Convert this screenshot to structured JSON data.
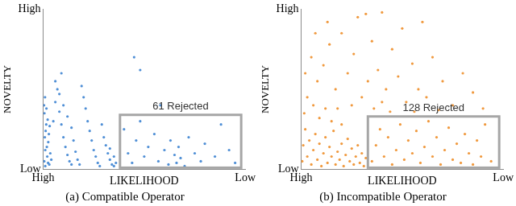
{
  "chart_data": [
    {
      "type": "scatter",
      "title": "(a) Compatible Operator",
      "xlabel": "LIKELIHOOD",
      "ylabel": "NOVELTY",
      "color": "#4f8fd6",
      "grid": false,
      "xlim": [
        0,
        100
      ],
      "xticks": [
        {
          "value": 0,
          "label": "High"
        },
        {
          "value": 100,
          "label": "Low"
        }
      ],
      "ylim": [
        0,
        100
      ],
      "yticks": [
        {
          "value": 0,
          "label": "Low"
        },
        {
          "value": 100,
          "label": "High"
        }
      ],
      "annotations": [
        {
          "text": "61 Rejected",
          "x": [
            38,
            98
          ],
          "y": [
            1,
            34
          ]
        }
      ],
      "x": [
        0.5,
        1,
        0.8,
        1.5,
        0.6,
        2,
        2.5,
        1.2,
        3,
        2.2,
        0.4,
        1.8,
        3.5,
        2.8,
        1,
        4,
        3.2,
        1.6,
        0.9,
        2.4,
        5,
        6,
        7,
        8,
        9,
        10,
        11,
        12,
        13,
        14,
        6,
        8,
        10,
        12,
        14,
        15,
        16,
        17,
        18,
        9,
        20,
        21,
        22,
        23,
        24,
        25,
        26,
        27,
        28,
        19,
        30,
        31,
        32,
        33,
        34,
        35,
        29,
        33,
        35,
        36,
        40,
        42,
        44,
        46,
        48,
        50,
        52,
        55,
        57,
        60,
        62,
        63,
        65,
        66,
        67,
        68,
        70,
        72,
        75,
        78,
        80,
        85,
        88,
        92,
        95,
        45,
        48,
        58
      ],
      "values": [
        5,
        12,
        20,
        28,
        35,
        8,
        17,
        24,
        3,
        31,
        40,
        14,
        10,
        22,
        2,
        6,
        27,
        38,
        45,
        4,
        30,
        42,
        50,
        36,
        28,
        20,
        14,
        9,
        5,
        3,
        55,
        47,
        40,
        33,
        26,
        18,
        11,
        6,
        3,
        60,
        45,
        38,
        30,
        24,
        18,
        12,
        8,
        4,
        2,
        52,
        20,
        15,
        10,
        6,
        3,
        2,
        28,
        13,
        8,
        4,
        25,
        10,
        4,
        18,
        30,
        8,
        14,
        22,
        5,
        12,
        3,
        18,
        9,
        4,
        14,
        7,
        2,
        20,
        10,
        5,
        16,
        8,
        28,
        12,
        4,
        70,
        62,
        40
      ]
    },
    {
      "type": "scatter",
      "title": "(b) Incompatible Operator",
      "xlabel": "LIKELIHOOD",
      "ylabel": "NOVELTY",
      "color": "#f0993e",
      "grid": false,
      "xlim": [
        0,
        100
      ],
      "xticks": [
        {
          "value": 0,
          "label": "High"
        },
        {
          "value": 100,
          "label": "Low"
        }
      ],
      "ylim": [
        0,
        100
      ],
      "yticks": [
        {
          "value": 0,
          "label": "Low"
        },
        {
          "value": 100,
          "label": "High"
        }
      ],
      "annotations": [
        {
          "text": "128 Rejected",
          "x": [
            33,
            98
          ],
          "y": [
            1,
            33
          ]
        }
      ],
      "x": [
        0.5,
        1,
        2,
        1.5,
        3,
        4,
        5,
        6,
        7,
        8,
        9,
        10,
        11,
        12,
        13,
        14,
        15,
        16,
        17,
        18,
        19,
        20,
        21,
        22,
        23,
        24,
        25,
        26,
        27,
        28,
        29,
        30,
        31,
        32,
        3,
        6,
        9,
        12,
        15,
        20,
        2,
        5,
        8,
        11,
        14,
        17,
        20,
        23,
        26,
        28,
        30,
        33,
        35,
        38,
        40,
        42,
        45,
        48,
        50,
        52,
        55,
        58,
        60,
        62,
        65,
        70,
        75,
        80,
        85,
        90,
        25,
        36,
        44,
        56,
        68,
        7,
        13,
        32,
        18,
        40,
        35,
        37,
        39,
        41,
        43,
        45,
        47,
        49,
        51,
        53,
        55,
        57,
        59,
        61,
        63,
        65,
        67,
        69,
        71,
        73,
        75,
        77,
        79,
        81,
        83,
        85,
        87,
        89,
        91,
        94
      ],
      "values": [
        5,
        15,
        25,
        35,
        8,
        18,
        3,
        12,
        22,
        6,
        16,
        2,
        10,
        20,
        4,
        14,
        8,
        24,
        3,
        11,
        6,
        16,
        2,
        9,
        19,
        5,
        13,
        3,
        8,
        15,
        4,
        10,
        2,
        7,
        45,
        40,
        32,
        38,
        30,
        28,
        60,
        70,
        55,
        65,
        78,
        50,
        85,
        60,
        72,
        95,
        45,
        55,
        80,
        62,
        98,
        50,
        75,
        58,
        88,
        42,
        66,
        50,
        92,
        45,
        70,
        55,
        40,
        60,
        48,
        38,
        40,
        38,
        36,
        36,
        37,
        85,
        92,
        97,
        38,
        42,
        5,
        15,
        25,
        8,
        20,
        3,
        12,
        28,
        6,
        18,
        10,
        24,
        4,
        14,
        30,
        8,
        20,
        3,
        12,
        26,
        6,
        16,
        4,
        22,
        10,
        3,
        18,
        8,
        28,
        5
      ]
    }
  ]
}
